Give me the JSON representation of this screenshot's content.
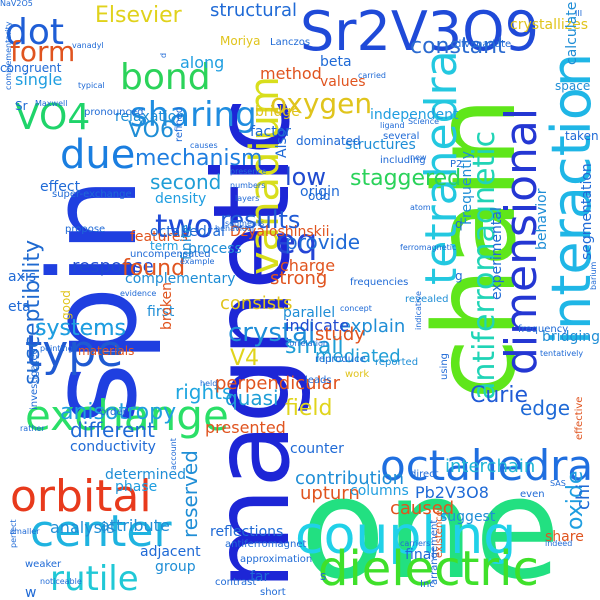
{
  "words": [
    {
      "text": "one",
      "color": "#22e081"
    },
    {
      "text": "magnetic",
      "color": "#1d26d6"
    },
    {
      "text": "chain",
      "color": "#5fe61a"
    },
    {
      "text": "spin",
      "color": "#1f3fe0"
    },
    {
      "text": "Sr2V3O9",
      "color": "#1f4ad8"
    },
    {
      "text": "coupling",
      "color": "#20d1e8"
    },
    {
      "text": "dielectric",
      "color": "#3fe02a"
    },
    {
      "text": "interaction",
      "color": "#1fb6e6"
    },
    {
      "text": "dimensional",
      "color": "#2437d3"
    },
    {
      "text": "tetrahedra",
      "color": "#23c8e0"
    },
    {
      "text": "type",
      "color": "#1f5ad2"
    },
    {
      "text": "center",
      "color": "#1fb3e0"
    },
    {
      "text": "orbital",
      "color": "#e83a1c"
    },
    {
      "text": "exchange",
      "color": "#2adf68"
    },
    {
      "text": "octahedra",
      "color": "#1f6fe0"
    },
    {
      "text": "dot",
      "color": "#1f5ed6"
    },
    {
      "text": "bond",
      "color": "#2bd35a"
    },
    {
      "text": "sharing",
      "color": "#1f8de0"
    },
    {
      "text": "due",
      "color": "#1a7ee0"
    },
    {
      "text": "vanadium",
      "color": "#d8de1c"
    },
    {
      "text": "VO4",
      "color": "#1fd46a"
    },
    {
      "text": "form",
      "color": "#e0541f"
    },
    {
      "text": "oxygen",
      "color": "#e0c41c"
    },
    {
      "text": "rutile",
      "color": "#21c8d6"
    },
    {
      "text": "eq",
      "color": "#2444d6"
    },
    {
      "text": "antiferromagnetic",
      "color": "#20d4b6"
    },
    {
      "text": "constant",
      "color": "#2a6ad0"
    },
    {
      "text": "mechanism",
      "color": "#1f7ee0"
    },
    {
      "text": "crystal",
      "color": "#1f8ed8"
    },
    {
      "text": "results",
      "color": "#1f5ad6"
    },
    {
      "text": "two",
      "color": "#1f4ad8"
    },
    {
      "text": "susceptibility",
      "color": "#1f6ad0"
    },
    {
      "text": "oxide",
      "color": "#1f9ee0"
    },
    {
      "text": "Elsevier",
      "color": "#e0d21c"
    },
    {
      "text": "structural",
      "color": "#1f6ad6"
    },
    {
      "text": "VO6",
      "color": "#1f8ed6"
    },
    {
      "text": "second",
      "color": "#1f9ed6"
    },
    {
      "text": "low",
      "color": "#1f4ad0"
    },
    {
      "text": "staggered",
      "color": "#2ad25a"
    },
    {
      "text": "field",
      "color": "#e0d41c"
    },
    {
      "text": "small",
      "color": "#1f9ed6"
    },
    {
      "text": "Curie",
      "color": "#1f5ad6"
    },
    {
      "text": "edge",
      "color": "#1f6ad6"
    },
    {
      "text": "systems",
      "color": "#1f9ee0"
    },
    {
      "text": "anisotropy",
      "color": "#1f9ee0"
    },
    {
      "text": "V4",
      "color": "#e0d41c"
    },
    {
      "text": "response",
      "color": "#1f4ad0"
    },
    {
      "text": "found",
      "color": "#e0541f"
    },
    {
      "text": "provide",
      "color": "#1f6ad6"
    },
    {
      "text": "different",
      "color": "#1f6ad6"
    },
    {
      "text": "contribution",
      "color": "#1f8ed6"
    },
    {
      "text": "interchain",
      "color": "#1fb6d6"
    },
    {
      "text": "Pb2V3O8",
      "color": "#1f6ad6"
    },
    {
      "text": "reserved",
      "color": "#1f8ed6"
    },
    {
      "text": "rights",
      "color": "#1fa6e0"
    },
    {
      "text": "quasi",
      "color": "#1f9ed6"
    },
    {
      "text": "mediated",
      "color": "#1f9ed6"
    },
    {
      "text": "perpendicular",
      "color": "#e0541f"
    },
    {
      "text": "consists",
      "color": "#e0c41c"
    },
    {
      "text": "explain",
      "color": "#1f8ed6"
    },
    {
      "text": "indicate",
      "color": "#1f4ad0"
    },
    {
      "text": "study",
      "color": "#e0541f"
    },
    {
      "text": "strong",
      "color": "#e0541f"
    },
    {
      "text": "charge",
      "color": "#e0541f"
    },
    {
      "text": "upturn",
      "color": "#e0541f"
    },
    {
      "text": "caused",
      "color": "#e0541f"
    },
    {
      "text": "share",
      "color": "#e0541f"
    },
    {
      "text": "presented",
      "color": "#e0541f"
    },
    {
      "text": "analysis",
      "color": "#1f8ed6"
    },
    {
      "text": "attribute",
      "color": "#1f8ed6"
    },
    {
      "text": "systems",
      "color": "#1f9ee0"
    },
    {
      "text": "method",
      "color": "#e0541f"
    },
    {
      "text": "along",
      "color": "#1f9ee0"
    },
    {
      "text": "relaxation",
      "color": "#1f8ed6"
    },
    {
      "text": "features",
      "color": "#e0541f"
    },
    {
      "text": "single",
      "color": "#1f9ee0"
    },
    {
      "text": "congruent",
      "color": "#1f6ad6"
    },
    {
      "text": "effect",
      "color": "#1f6ad6"
    },
    {
      "text": "Dzyaloshinskii",
      "color": "#e0541f"
    },
    {
      "text": "complementary",
      "color": "#1f8ed6"
    },
    {
      "text": "process",
      "color": "#1f8ed6"
    },
    {
      "text": "density",
      "color": "#1f9ee0"
    },
    {
      "text": "term",
      "color": "#1f9ee0"
    },
    {
      "text": "octahedral",
      "color": "#1f6ad6"
    },
    {
      "text": "first",
      "color": "#1f8ed6"
    },
    {
      "text": "parallel",
      "color": "#1f8ed6"
    },
    {
      "text": "conductivity",
      "color": "#1f6ad6"
    },
    {
      "text": "determined",
      "color": "#1f8ed6"
    },
    {
      "text": "phase",
      "color": "#1f9ee0"
    },
    {
      "text": "reflections",
      "color": "#1f6ad6"
    },
    {
      "text": "adjacent",
      "color": "#1f6ad6"
    },
    {
      "text": "group",
      "color": "#1f8ed6"
    },
    {
      "text": "columns",
      "color": "#1f9ee0"
    },
    {
      "text": "counter",
      "color": "#1f6ad6"
    },
    {
      "text": "final",
      "color": "#1f6ad6"
    },
    {
      "text": "suggest",
      "color": "#1f8ed6"
    },
    {
      "text": "crystallizes",
      "color": "#e0c41c"
    },
    {
      "text": "calculate",
      "color": "#1f8ed6"
    },
    {
      "text": "values",
      "color": "#e0541f"
    },
    {
      "text": "bridge",
      "color": "#e0c41c"
    },
    {
      "text": "factor",
      "color": "#1f6ad6"
    },
    {
      "text": "Also",
      "color": "#1f6ad6"
    },
    {
      "text": "beta",
      "color": "#1f6ad6"
    },
    {
      "text": "structures",
      "color": "#1f8ed6"
    },
    {
      "text": "independent",
      "color": "#1f9ee0"
    },
    {
      "text": "Lanczos",
      "color": "#1f6ad6"
    },
    {
      "text": "Moriya",
      "color": "#e0c41c"
    },
    {
      "text": "dominated",
      "color": "#1f6ad6"
    },
    {
      "text": "space",
      "color": "#1f8ed6"
    },
    {
      "text": "taken",
      "color": "#1f6ad6"
    },
    {
      "text": "behavior",
      "color": "#1f8ed6"
    },
    {
      "text": "Frequently",
      "color": "#1f8ed6"
    },
    {
      "text": "experimental",
      "color": "#1f6ad6"
    },
    {
      "text": "segmentation",
      "color": "#1f6ad6"
    },
    {
      "text": "bridging",
      "color": "#1f8ed6"
    },
    {
      "text": "chi",
      "color": "#1f6ad6"
    },
    {
      "text": "axis",
      "color": "#1f6ad6"
    },
    {
      "text": "eta",
      "color": "#1f6ad6"
    },
    {
      "text": "Sr",
      "color": "#1f6ad6"
    },
    {
      "text": "good",
      "color": "#e0c41c"
    },
    {
      "text": "materials",
      "color": "#e0541f"
    },
    {
      "text": "broken",
      "color": "#e0541f"
    },
    {
      "text": "super-exchange",
      "color": "#1f6ad6"
    },
    {
      "text": "propose",
      "color": "#1f6ad6"
    },
    {
      "text": "origin",
      "color": "#1f6ad6"
    },
    {
      "text": "finite",
      "color": "#1f8ed6"
    },
    {
      "text": "antiferromagnet",
      "color": "#1f6ad6"
    },
    {
      "text": "contrast",
      "color": "#1f6ad6"
    },
    {
      "text": "short",
      "color": "#1f6ad6"
    },
    {
      "text": "far",
      "color": "#1f6ad6"
    },
    {
      "text": "approximation",
      "color": "#1f6ad6"
    },
    {
      "text": "Inc",
      "color": "#1f6ad6"
    },
    {
      "text": "work",
      "color": "#e0c41c"
    },
    {
      "text": "ferromagnetic",
      "color": "#1f6ad6"
    },
    {
      "text": "frequencies",
      "color": "#1f6ad6"
    },
    {
      "text": "revealed",
      "color": "#1f8ed6"
    },
    {
      "text": "reported",
      "color": "#1f8ed6"
    },
    {
      "text": "reproduce",
      "color": "#1f6ad6"
    },
    {
      "text": "leads",
      "color": "#1f6ad6"
    },
    {
      "text": "including",
      "color": "#1f6ad6"
    },
    {
      "text": "several",
      "color": "#1f6ad6"
    },
    {
      "text": "typical",
      "color": "#1f6ad6"
    },
    {
      "text": "pronounced",
      "color": "#1f6ad6"
    },
    {
      "text": "Maxwell",
      "color": "#1f6ad6"
    },
    {
      "text": "perfect",
      "color": "#1f6ad6"
    },
    {
      "text": "vanadyl",
      "color": "#1f6ad6"
    },
    {
      "text": "Science",
      "color": "#1f6ad6"
    },
    {
      "text": "ligand",
      "color": "#1f6ad6"
    },
    {
      "text": "carried",
      "color": "#1f6ad6"
    },
    {
      "text": "divanadate",
      "color": "#1f6ad6"
    },
    {
      "text": "P2",
      "color": "#1f6ad6"
    },
    {
      "text": "new",
      "color": "#1f6ad6"
    },
    {
      "text": "causes",
      "color": "#1f6ad6"
    },
    {
      "text": "refined",
      "color": "#1f6ad6"
    },
    {
      "text": "presence",
      "color": "#1f6ad6"
    },
    {
      "text": "numbers",
      "color": "#1f6ad6"
    },
    {
      "text": "layers",
      "color": "#1f6ad6"
    },
    {
      "text": "atom",
      "color": "#1f6ad6"
    },
    {
      "text": "segments",
      "color": "#1f6ad6"
    },
    {
      "text": "example",
      "color": "#1f6ad6"
    },
    {
      "text": "evidence",
      "color": "#1f6ad6"
    },
    {
      "text": "concept",
      "color": "#1f6ad6"
    },
    {
      "text": "correlation",
      "color": "#1f6ad6"
    },
    {
      "text": "frequency",
      "color": "#1f6ad6"
    },
    {
      "text": "tentatively",
      "color": "#1f6ad6"
    },
    {
      "text": "held",
      "color": "#1f6ad6"
    },
    {
      "text": "investigated",
      "color": "#1f6ad6"
    },
    {
      "text": "rather",
      "color": "#1f6ad6"
    },
    {
      "text": "order",
      "color": "#1f6ad6"
    },
    {
      "text": "using",
      "color": "#1f6ad6"
    },
    {
      "text": "smaller",
      "color": "#1f6ad6"
    },
    {
      "text": "weaker",
      "color": "#1f6ad6"
    },
    {
      "text": "noticeable",
      "color": "#1f6ad6"
    },
    {
      "text": "carriers",
      "color": "#1f6ad6"
    },
    {
      "text": "SAS",
      "color": "#1f6ad6"
    },
    {
      "text": "even",
      "color": "#1f6ad6"
    },
    {
      "text": "indeed",
      "color": "#1f6ad6"
    },
    {
      "text": "arrangement",
      "color": "#1f6ad6"
    },
    {
      "text": "existence",
      "color": "#e0541f"
    },
    {
      "text": "effective",
      "color": "#e0541f"
    },
    {
      "text": "complementarity",
      "color": "#1f6ad6"
    },
    {
      "text": "uncompensated",
      "color": "#1f6ad6"
    },
    {
      "text": "pointing",
      "color": "#1f6ad6"
    },
    {
      "text": "behaviour",
      "color": "#1f6ad6"
    },
    {
      "text": "account",
      "color": "#1f6ad6"
    },
    {
      "text": "barium",
      "color": "#1f6ad6"
    },
    {
      "text": "indicative",
      "color": "#1f6ad6"
    },
    {
      "text": "direct",
      "color": "#1f6ad6"
    },
    {
      "text": "odd",
      "color": "#1f6ad6"
    },
    {
      "text": "q",
      "color": "#1f6ad6"
    },
    {
      "text": "g",
      "color": "#1f6ad6"
    },
    {
      "text": "s",
      "color": "#1f6ad6"
    },
    {
      "text": "w",
      "color": "#1f6ad6"
    },
    {
      "text": "d",
      "color": "#1f6ad6"
    },
    {
      "text": "III",
      "color": "#1f6ad6"
    },
    {
      "text": "NaV2O5",
      "color": "#1f6ad6"
    }
  ]
}
